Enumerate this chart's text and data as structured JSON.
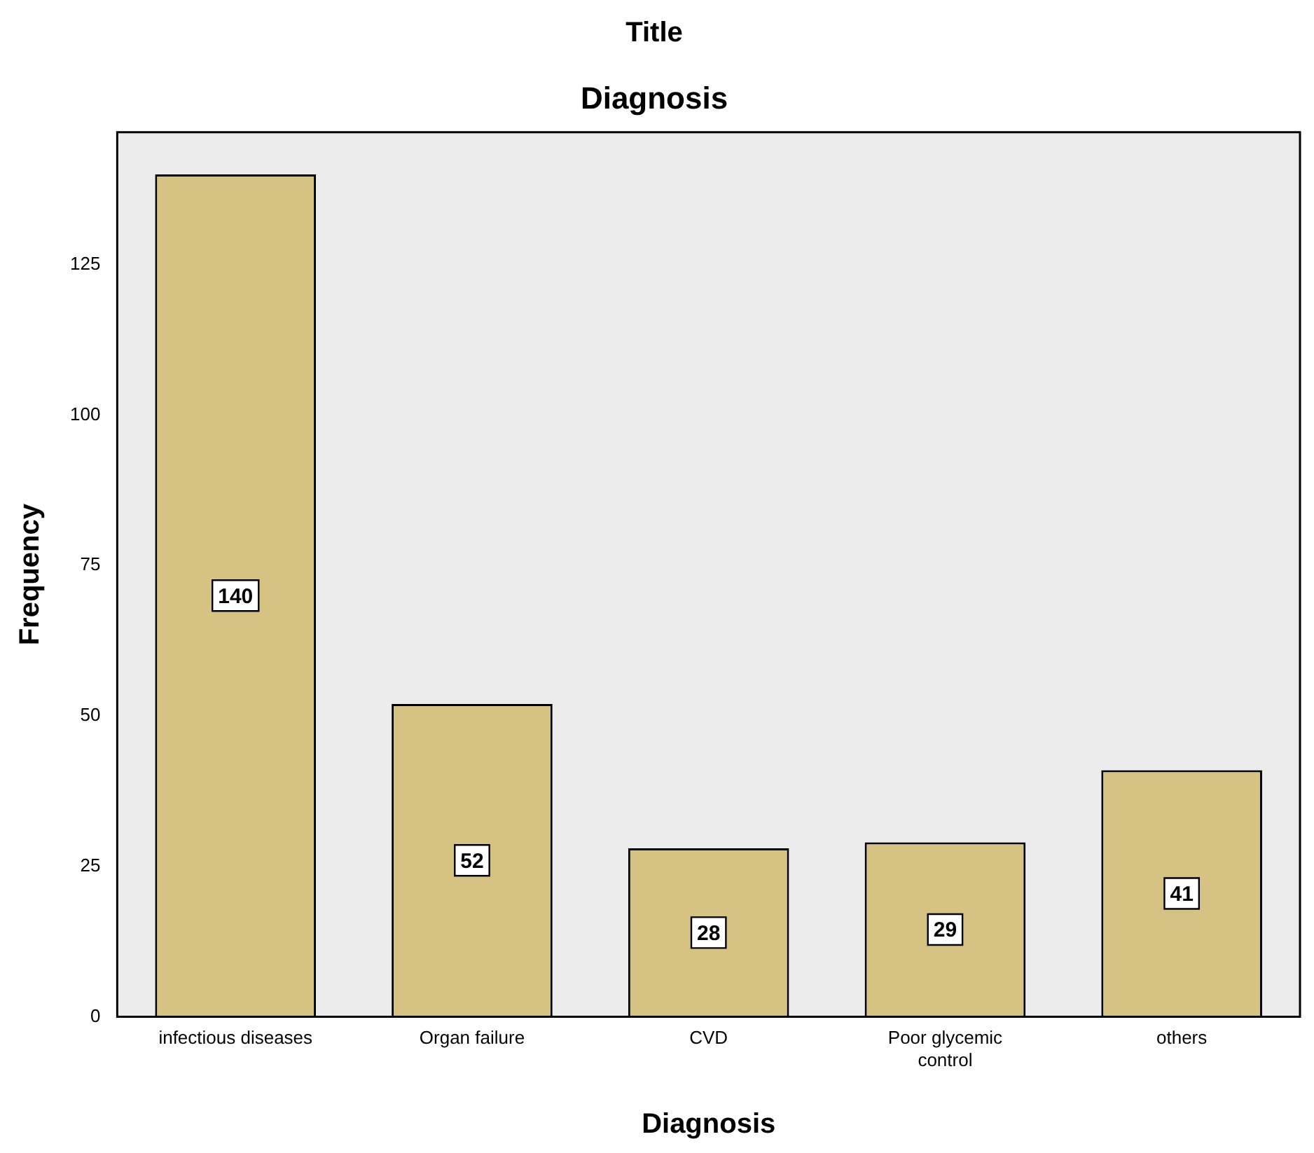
{
  "chart_data": {
    "type": "bar",
    "title": "Title",
    "subtitle": "Diagnosis",
    "xlabel": "Diagnosis",
    "ylabel": "Frequency",
    "categories": [
      "infectious diseases",
      "Organ failure",
      "CVD",
      "Poor glycemic control",
      "others"
    ],
    "values": [
      140,
      52,
      28,
      29,
      41
    ],
    "color": "#d6c383",
    "ylim": [
      0,
      147
    ],
    "yticks": [
      0,
      25,
      50,
      75,
      100,
      125
    ],
    "grid": false,
    "legend": false,
    "data_labels": true
  }
}
